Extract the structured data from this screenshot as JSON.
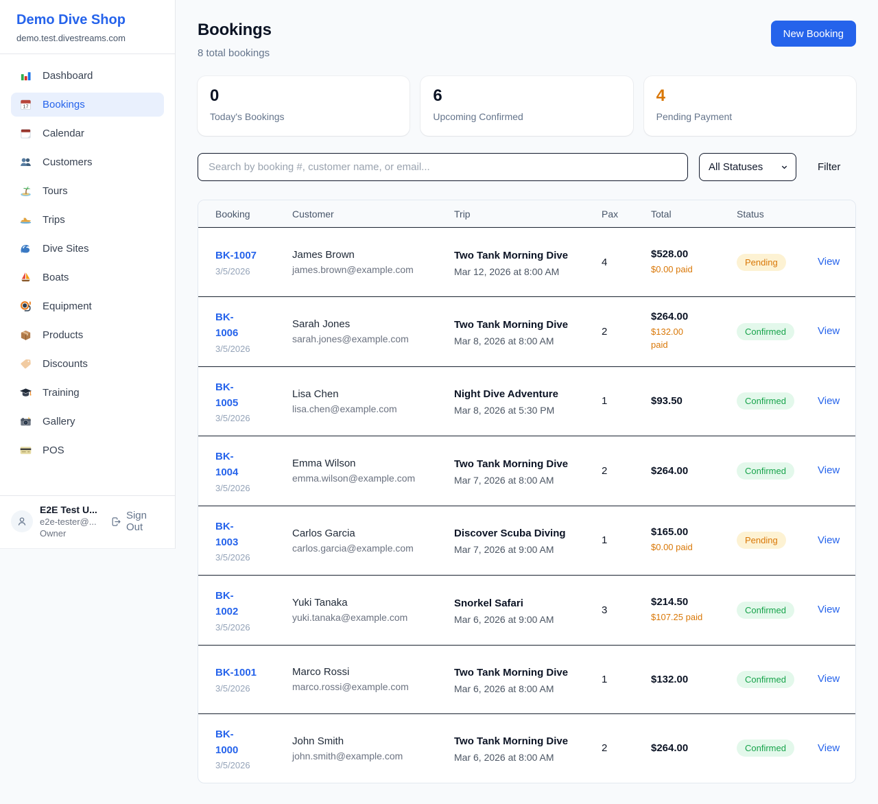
{
  "sidebar": {
    "brand": {
      "name": "Demo Dive Shop",
      "domain": "demo.test.divestreams.com"
    },
    "nav": [
      {
        "label": "Dashboard",
        "icon": "bar-chart-icon",
        "active": false
      },
      {
        "label": "Bookings",
        "icon": "calendar-date-icon",
        "active": true
      },
      {
        "label": "Calendar",
        "icon": "calendar-icon",
        "active": false
      },
      {
        "label": "Customers",
        "icon": "people-icon",
        "active": false
      },
      {
        "label": "Tours",
        "icon": "island-icon",
        "active": false
      },
      {
        "label": "Trips",
        "icon": "speedboat-icon",
        "active": false
      },
      {
        "label": "Dive Sites",
        "icon": "wave-icon",
        "active": false
      },
      {
        "label": "Boats",
        "icon": "sailboat-icon",
        "active": false
      },
      {
        "label": "Equipment",
        "icon": "dive-mask-icon",
        "active": false
      },
      {
        "label": "Products",
        "icon": "package-icon",
        "active": false
      },
      {
        "label": "Discounts",
        "icon": "tag-icon",
        "active": false
      },
      {
        "label": "Training",
        "icon": "graduation-cap-icon",
        "active": false
      },
      {
        "label": "Gallery",
        "icon": "camera-icon",
        "active": false
      },
      {
        "label": "POS",
        "icon": "credit-card-icon",
        "active": false
      }
    ],
    "user": {
      "name": "E2E Test U...",
      "email": "e2e-tester@...",
      "role": "Owner",
      "sign_out_label": "Sign Out"
    }
  },
  "header": {
    "title": "Bookings",
    "subtitle": "8 total bookings",
    "new_booking_label": "New Booking"
  },
  "stats": [
    {
      "value": "0",
      "label": "Today's Bookings",
      "value_color": "#0b1324"
    },
    {
      "value": "6",
      "label": "Upcoming Confirmed",
      "value_color": "#0b1324"
    },
    {
      "value": "4",
      "label": "Pending Payment",
      "value_color": "#d97706"
    }
  ],
  "filters": {
    "search_placeholder": "Search by booking #, customer name, or email...",
    "status_selected": "All Statuses",
    "filter_label": "Filter"
  },
  "table": {
    "columns": [
      "Booking",
      "Customer",
      "Trip",
      "Pax",
      "Total",
      "Status",
      ""
    ],
    "status_styles": {
      "Pending": {
        "bg": "#fdf2d3",
        "text": "#d97706"
      },
      "Confirmed": {
        "bg": "#e3f8eb",
        "text": "#16a34a"
      }
    },
    "rows": [
      {
        "id": "BK-1007",
        "id_wrapped": false,
        "date": "3/5/2026",
        "customer": "James Brown",
        "email": "james.brown@example.com",
        "trip": "Two Tank Morning Dive",
        "trip_datetime": "Mar 12, 2026 at 8:00 AM",
        "pax": "4",
        "total": "$528.00",
        "paid": "$0.00 paid",
        "paid_wrapped": false,
        "status": "Pending",
        "action": "View"
      },
      {
        "id": "BK-1006",
        "id_wrapped": true,
        "date": "3/5/2026",
        "customer": "Sarah Jones",
        "email": "sarah.jones@example.com",
        "trip": "Two Tank Morning Dive",
        "trip_datetime": "Mar 8, 2026 at 8:00 AM",
        "pax": "2",
        "total": "$264.00",
        "paid": "$132.00 paid",
        "paid_wrapped": true,
        "status": "Confirmed",
        "action": "View"
      },
      {
        "id": "BK-1005",
        "id_wrapped": true,
        "date": "3/5/2026",
        "customer": "Lisa Chen",
        "email": "lisa.chen@example.com",
        "trip": "Night Dive Adventure",
        "trip_datetime": "Mar 8, 2026 at 5:30 PM",
        "pax": "1",
        "total": "$93.50",
        "paid": null,
        "paid_wrapped": false,
        "status": "Confirmed",
        "action": "View"
      },
      {
        "id": "BK-1004",
        "id_wrapped": true,
        "date": "3/5/2026",
        "customer": "Emma Wilson",
        "email": "emma.wilson@example.com",
        "trip": "Two Tank Morning Dive",
        "trip_datetime": "Mar 7, 2026 at 8:00 AM",
        "pax": "2",
        "total": "$264.00",
        "paid": null,
        "paid_wrapped": false,
        "status": "Confirmed",
        "action": "View"
      },
      {
        "id": "BK-1003",
        "id_wrapped": true,
        "date": "3/5/2026",
        "customer": "Carlos Garcia",
        "email": "carlos.garcia@example.com",
        "trip": "Discover Scuba Diving",
        "trip_datetime": "Mar 7, 2026 at 9:00 AM",
        "pax": "1",
        "total": "$165.00",
        "paid": "$0.00 paid",
        "paid_wrapped": false,
        "status": "Pending",
        "action": "View"
      },
      {
        "id": "BK-1002",
        "id_wrapped": true,
        "date": "3/5/2026",
        "customer": "Yuki Tanaka",
        "email": "yuki.tanaka@example.com",
        "trip": "Snorkel Safari",
        "trip_datetime": "Mar 6, 2026 at 9:00 AM",
        "pax": "3",
        "total": "$214.50",
        "paid": "$107.25 paid",
        "paid_wrapped": false,
        "status": "Confirmed",
        "action": "View"
      },
      {
        "id": "BK-1001",
        "id_wrapped": false,
        "date": "3/5/2026",
        "customer": "Marco Rossi",
        "email": "marco.rossi@example.com",
        "trip": "Two Tank Morning Dive",
        "trip_datetime": "Mar 6, 2026 at 8:00 AM",
        "pax": "1",
        "total": "$132.00",
        "paid": null,
        "paid_wrapped": false,
        "status": "Confirmed",
        "action": "View"
      },
      {
        "id": "BK-1000",
        "id_wrapped": true,
        "date": "3/5/2026",
        "customer": "John Smith",
        "email": "john.smith@example.com",
        "trip": "Two Tank Morning Dive",
        "trip_datetime": "Mar 6, 2026 at 8:00 AM",
        "pax": "2",
        "total": "$264.00",
        "paid": null,
        "paid_wrapped": false,
        "status": "Confirmed",
        "action": "View"
      }
    ]
  },
  "colors": {
    "accent_blue": "#2563eb",
    "pending_orange": "#d97706",
    "confirmed_green": "#16a34a",
    "page_background": "#f8fafc"
  }
}
